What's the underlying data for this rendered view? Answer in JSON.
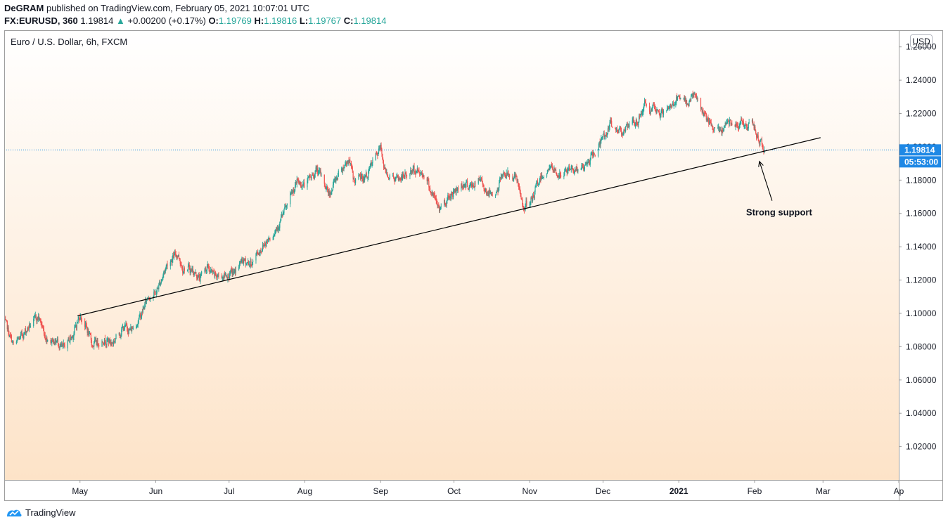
{
  "header": {
    "author": "DeGRAM",
    "published": "published on TradingView.com, February 05, 2021 10:07:01 UTC",
    "symbol": "FX:EURUSD, 360",
    "last": "1.19814",
    "change": "+0.00200 (+0.17%)",
    "o_label": "O:",
    "o_value": "1.19769",
    "h_label": "H:",
    "h_value": "1.19816",
    "l_label": "L:",
    "l_value": "1.19767",
    "c_label": "C:",
    "c_value": "1.19814"
  },
  "footer": {
    "brand": "TradingView"
  },
  "colors": {
    "up": "#26a69a",
    "down": "#ef5350",
    "bg_top": "#ffffff",
    "bg_bottom": "#fde3c8",
    "price_line": "#1e88e5",
    "label_bg": "#1e88e5"
  },
  "chart_data": {
    "type": "candlestick",
    "title": "Euro / U.S. Dollar, 6h, FXCM",
    "currency_badge": "USD",
    "ylim": [
      1.0,
      1.27
    ],
    "yticks": [
      "1.26000",
      "1.24000",
      "1.22000",
      "1.20000",
      "1.18000",
      "1.16000",
      "1.14000",
      "1.12000",
      "1.10000",
      "1.08000",
      "1.06000",
      "1.04000",
      "1.02000"
    ],
    "xlim": [
      "2020-03-31",
      "2021-04-01"
    ],
    "xticks": [
      {
        "date": "2020-05-01",
        "label": "May"
      },
      {
        "date": "2020-06-01",
        "label": "Jun"
      },
      {
        "date": "2020-07-01",
        "label": "Jul"
      },
      {
        "date": "2020-08-01",
        "label": "Aug"
      },
      {
        "date": "2020-09-01",
        "label": "Sep"
      },
      {
        "date": "2020-10-01",
        "label": "Oct"
      },
      {
        "date": "2020-11-01",
        "label": "Nov"
      },
      {
        "date": "2020-12-01",
        "label": "Dec"
      },
      {
        "date": "2021-01-01",
        "label": "2021"
      },
      {
        "date": "2021-02-01",
        "label": "Feb"
      },
      {
        "date": "2021-03-01",
        "label": "Mar"
      },
      {
        "date": "2021-04-01",
        "label": "Ap"
      }
    ],
    "price_path": [
      [
        "2020-03-31",
        1.095
      ],
      [
        "2020-04-04",
        1.08
      ],
      [
        "2020-04-10",
        1.092
      ],
      [
        "2020-04-14",
        1.098
      ],
      [
        "2020-04-17",
        1.086
      ],
      [
        "2020-04-22",
        1.083
      ],
      [
        "2020-04-24",
        1.078
      ],
      [
        "2020-04-28",
        1.087
      ],
      [
        "2020-05-01",
        1.099
      ],
      [
        "2020-05-03",
        1.094
      ],
      [
        "2020-05-06",
        1.081
      ],
      [
        "2020-05-11",
        1.085
      ],
      [
        "2020-05-14",
        1.082
      ],
      [
        "2020-05-19",
        1.092
      ],
      [
        "2020-05-22",
        1.09
      ],
      [
        "2020-05-26",
        1.099
      ],
      [
        "2020-05-29",
        1.111
      ],
      [
        "2020-06-01",
        1.112
      ],
      [
        "2020-06-06",
        1.131
      ],
      [
        "2020-06-10",
        1.136
      ],
      [
        "2020-06-12",
        1.128
      ],
      [
        "2020-06-16",
        1.126
      ],
      [
        "2020-06-19",
        1.121
      ],
      [
        "2020-06-22",
        1.128
      ],
      [
        "2020-06-25",
        1.122
      ],
      [
        "2020-06-29",
        1.123
      ],
      [
        "2020-07-03",
        1.124
      ],
      [
        "2020-07-06",
        1.131
      ],
      [
        "2020-07-10",
        1.13
      ],
      [
        "2020-07-15",
        1.141
      ],
      [
        "2020-07-21",
        1.153
      ],
      [
        "2020-07-25",
        1.165
      ],
      [
        "2020-07-29",
        1.179
      ],
      [
        "2020-08-01",
        1.177
      ],
      [
        "2020-08-06",
        1.186
      ],
      [
        "2020-08-11",
        1.172
      ],
      [
        "2020-08-15",
        1.185
      ],
      [
        "2020-08-19",
        1.193
      ],
      [
        "2020-08-21",
        1.18
      ],
      [
        "2020-08-26",
        1.182
      ],
      [
        "2020-09-01",
        1.199
      ],
      [
        "2020-09-03",
        1.185
      ],
      [
        "2020-09-08",
        1.18
      ],
      [
        "2020-09-11",
        1.183
      ],
      [
        "2020-09-15",
        1.186
      ],
      [
        "2020-09-19",
        1.184
      ],
      [
        "2020-09-22",
        1.172
      ],
      [
        "2020-09-25",
        1.163
      ],
      [
        "2020-09-30",
        1.172
      ],
      [
        "2020-10-05",
        1.178
      ],
      [
        "2020-10-08",
        1.176
      ],
      [
        "2020-10-12",
        1.18
      ],
      [
        "2020-10-15",
        1.172
      ],
      [
        "2020-10-19",
        1.174
      ],
      [
        "2020-10-21",
        1.185
      ],
      [
        "2020-10-26",
        1.182
      ],
      [
        "2020-10-29",
        1.166
      ],
      [
        "2020-11-01",
        1.164
      ],
      [
        "2020-11-05",
        1.181
      ],
      [
        "2020-11-09",
        1.188
      ],
      [
        "2020-11-13",
        1.183
      ],
      [
        "2020-11-18",
        1.187
      ],
      [
        "2020-11-23",
        1.187
      ],
      [
        "2020-11-27",
        1.195
      ],
      [
        "2020-12-01",
        1.205
      ],
      [
        "2020-12-04",
        1.213
      ],
      [
        "2020-12-07",
        1.21
      ],
      [
        "2020-12-11",
        1.211
      ],
      [
        "2020-12-15",
        1.215
      ],
      [
        "2020-12-18",
        1.225
      ],
      [
        "2020-12-21",
        1.222
      ],
      [
        "2020-12-24",
        1.22
      ],
      [
        "2020-12-28",
        1.222
      ],
      [
        "2020-12-31",
        1.229
      ],
      [
        "2021-01-04",
        1.226
      ],
      [
        "2021-01-07",
        1.232
      ],
      [
        "2021-01-10",
        1.223
      ],
      [
        "2021-01-14",
        1.212
      ],
      [
        "2021-01-18",
        1.208
      ],
      [
        "2021-01-21",
        1.216
      ],
      [
        "2021-01-25",
        1.215
      ],
      [
        "2021-01-28",
        1.213
      ],
      [
        "2021-01-31",
        1.213
      ],
      [
        "2021-02-03",
        1.204
      ],
      [
        "2021-02-05",
        1.1981
      ]
    ],
    "support_line": {
      "start": [
        "2020-04-30",
        1.0985
      ],
      "end": [
        "2021-02-28",
        1.2055
      ]
    },
    "last_price": {
      "value": 1.19814,
      "label": "1.19814",
      "countdown": "05:53:00"
    },
    "annotation": {
      "text": "Strong support",
      "target": [
        "2021-02-05",
        1.1925
      ]
    }
  }
}
